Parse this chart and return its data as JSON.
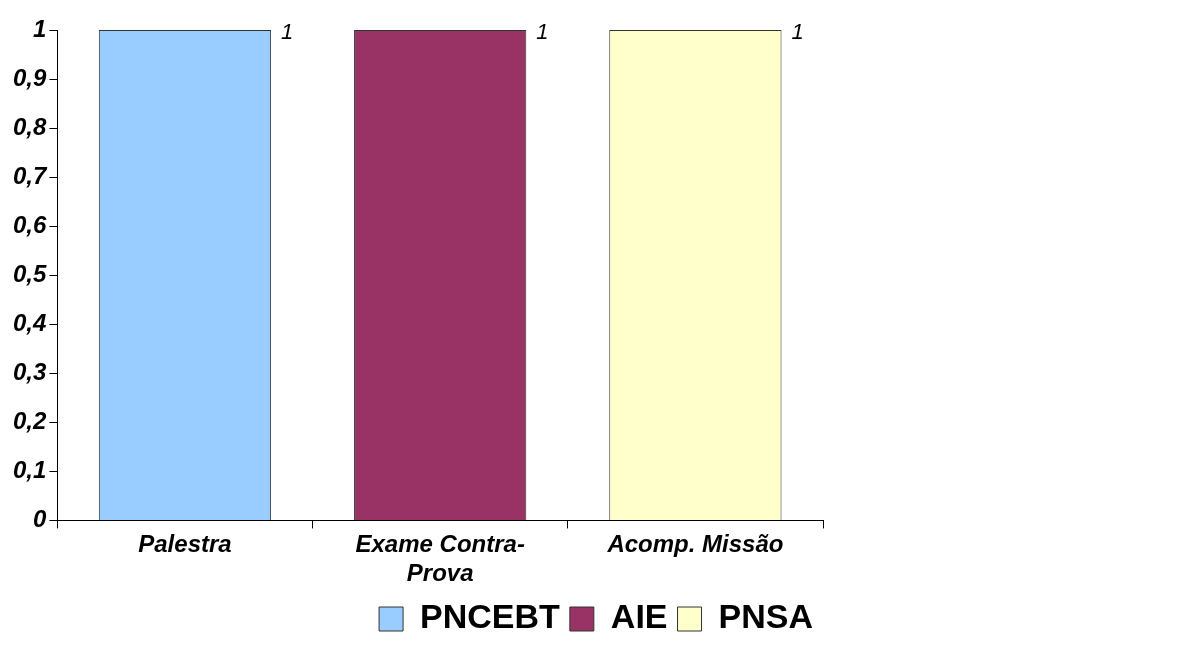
{
  "chart_data": {
    "type": "bar",
    "categories": [
      "Palestra",
      "Exame Contra-Prova",
      "Acomp. Missão"
    ],
    "series": [
      {
        "name": "PNCEBT",
        "color": "#99ccff",
        "values": [
          1,
          null,
          null
        ]
      },
      {
        "name": "AIE",
        "color": "#993366",
        "values": [
          null,
          1,
          null
        ]
      },
      {
        "name": "PNSA",
        "color": "#ffffcc",
        "values": [
          null,
          null,
          1
        ]
      }
    ],
    "ylim": [
      0,
      1
    ],
    "yticks": [
      0,
      {
        "value": 0.1,
        "label": "0,1"
      },
      {
        "value": 0.2,
        "label": "0,2"
      },
      {
        "value": 0.3,
        "label": "0,3"
      },
      {
        "value": 0.4,
        "label": "0,4"
      },
      {
        "value": 0.5,
        "label": "0,5"
      },
      {
        "value": 0.6,
        "label": "0,6"
      },
      {
        "value": 0.7,
        "label": "0,7"
      },
      {
        "value": 0.8,
        "label": "0,8"
      },
      {
        "value": 0.9,
        "label": "0,9"
      },
      1
    ],
    "grid": false,
    "legend": "bottom right",
    "data_labels": true
  }
}
